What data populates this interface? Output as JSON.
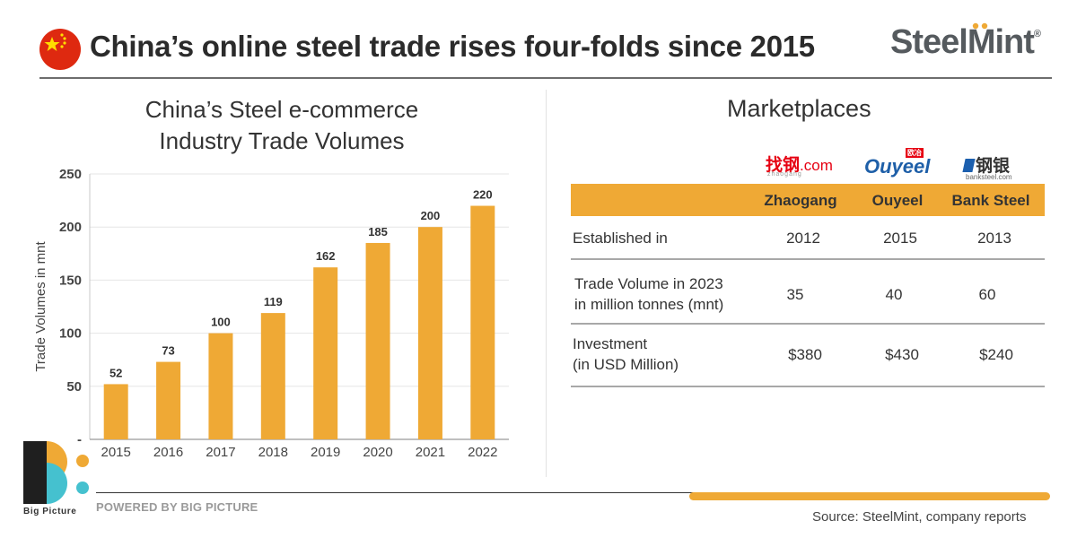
{
  "header": {
    "title": "China’s online steel trade rises four-folds since 2015",
    "brand": "SteelMint",
    "brand_mark": "®"
  },
  "chart_data": {
    "type": "bar",
    "title_line1": "China’s Steel e-commerce",
    "title_line2": "Industry Trade Volumes",
    "categories": [
      "2015",
      "2016",
      "2017",
      "2018",
      "2019",
      "2020",
      "2021",
      "2022"
    ],
    "values": [
      52,
      73,
      100,
      119,
      162,
      185,
      200,
      220
    ],
    "ylabel": "Trade Volumes in mnt",
    "ylim": [
      0,
      250
    ],
    "yticks": [
      "-",
      "50",
      "100",
      "150",
      "200",
      "250"
    ],
    "bar_color": "#efa935",
    "grid": true
  },
  "marketplaces": {
    "title": "Marketplaces",
    "logos": {
      "zhaogang_cn": "找钢",
      "zhaogang_com": ".com",
      "zhaogang_sub": "zhaogang",
      "ouyeel": "Ouyeel",
      "ouyeel_tag": "欧冶",
      "bank_cn": "钢银",
      "bank_sub": "banksteel.com"
    },
    "columns": [
      "Zhaogang",
      "Ouyeel",
      "Bank Steel"
    ],
    "rows": [
      {
        "label_line1": "Established in",
        "label_line2": "",
        "values": [
          "2012",
          "2015",
          "2013"
        ]
      },
      {
        "label_line1": "Trade Volume in 2023",
        "label_line2": "in million tonnes (mnt)",
        "values": [
          "35",
          "40",
          "60"
        ]
      },
      {
        "label_line1": "Investment",
        "label_line2": "(in USD Million)",
        "values": [
          "$380",
          "$430",
          "$240"
        ]
      }
    ]
  },
  "footer": {
    "bp_name": "Big Picture",
    "powered": "POWERED BY BIG PICTURE",
    "source": "Source: SteelMint, company reports"
  },
  "colors": {
    "accent": "#efa935",
    "flag_red": "#de2910",
    "flag_star": "#ffde00",
    "bp_dark": "#1f1f1f",
    "bp_teal": "#45c1cf"
  }
}
